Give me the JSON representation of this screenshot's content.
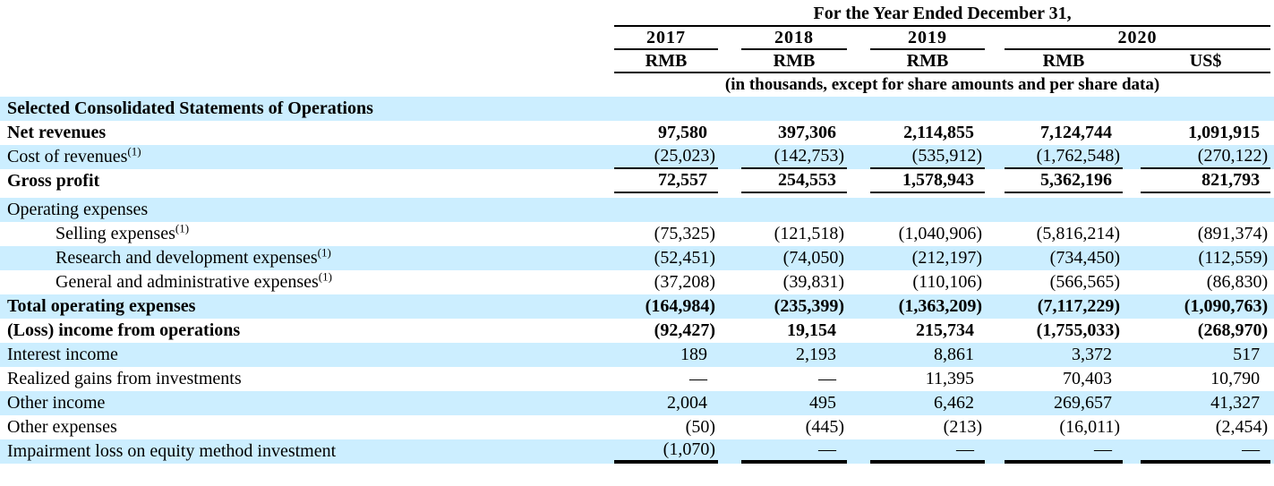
{
  "header": {
    "title": "For the Year Ended December 31,",
    "years": [
      "2017",
      "2018",
      "2019",
      "2020"
    ],
    "currencies": [
      "RMB",
      "RMB",
      "RMB",
      "RMB",
      "US$"
    ],
    "note": "(in thousands, except for share amounts and per share data)"
  },
  "table": {
    "rows": [
      {
        "label": "Selected Consolidated Statements of Operations",
        "bold": true,
        "values": [
          "",
          "",
          "",
          "",
          ""
        ]
      },
      {
        "label": "Net revenues",
        "bold": true,
        "values": [
          "97,580",
          "397,306",
          "2,114,855",
          "7,124,744",
          "1,091,915"
        ]
      },
      {
        "label": "Cost of revenues",
        "sup": "(1)",
        "underline": true,
        "values": [
          "(25,023)",
          "(142,753)",
          "(535,912)",
          "(1,762,548)",
          "(270,122)"
        ]
      },
      {
        "label": "Gross profit",
        "bold": true,
        "underline": true,
        "spacer_after": true,
        "values": [
          "72,557",
          "254,553",
          "1,578,943",
          "5,362,196",
          "821,793"
        ]
      },
      {
        "label": "Operating expenses",
        "values": [
          "",
          "",
          "",
          "",
          ""
        ]
      },
      {
        "label": "Selling expenses",
        "sup": "(1)",
        "indent": true,
        "values": [
          "(75,325)",
          "(121,518)",
          "(1,040,906)",
          "(5,816,214)",
          "(891,374)"
        ]
      },
      {
        "label": "Research and development expenses",
        "sup": "(1)",
        "indent": true,
        "values": [
          "(52,451)",
          "(74,050)",
          "(212,197)",
          "(734,450)",
          "(112,559)"
        ]
      },
      {
        "label": "General and administrative expenses",
        "sup": "(1)",
        "indent": true,
        "values": [
          "(37,208)",
          "(39,831)",
          "(110,106)",
          "(566,565)",
          "(86,830)"
        ]
      },
      {
        "label": "Total operating expenses",
        "bold": true,
        "values": [
          "(164,984)",
          "(235,399)",
          "(1,363,209)",
          "(7,117,229)",
          "(1,090,763)"
        ]
      },
      {
        "label": "(Loss) income from operations",
        "bold": true,
        "values": [
          "(92,427)",
          "19,154",
          "215,734",
          "(1,755,033)",
          "(268,970)"
        ]
      },
      {
        "label": "Interest income",
        "values": [
          "189",
          "2,193",
          "8,861",
          "3,372",
          "517"
        ]
      },
      {
        "label": "Realized gains from investments",
        "values": [
          "—",
          "—",
          "11,395",
          "70,403",
          "10,790"
        ]
      },
      {
        "label": "Other income",
        "values": [
          "2,004",
          "495",
          "6,462",
          "269,657",
          "41,327"
        ]
      },
      {
        "label": "Other expenses",
        "values": [
          "(50)",
          "(445)",
          "(213)",
          "(16,011)",
          "(2,454)"
        ]
      },
      {
        "label": "Impairment loss on equity method investment",
        "underline_thick": true,
        "values": [
          "(1,070)",
          "—",
          "—",
          "—",
          "—"
        ]
      }
    ]
  },
  "colors": {
    "row_highlight": "#cceeff",
    "line": "#000000",
    "text": "#000000"
  }
}
